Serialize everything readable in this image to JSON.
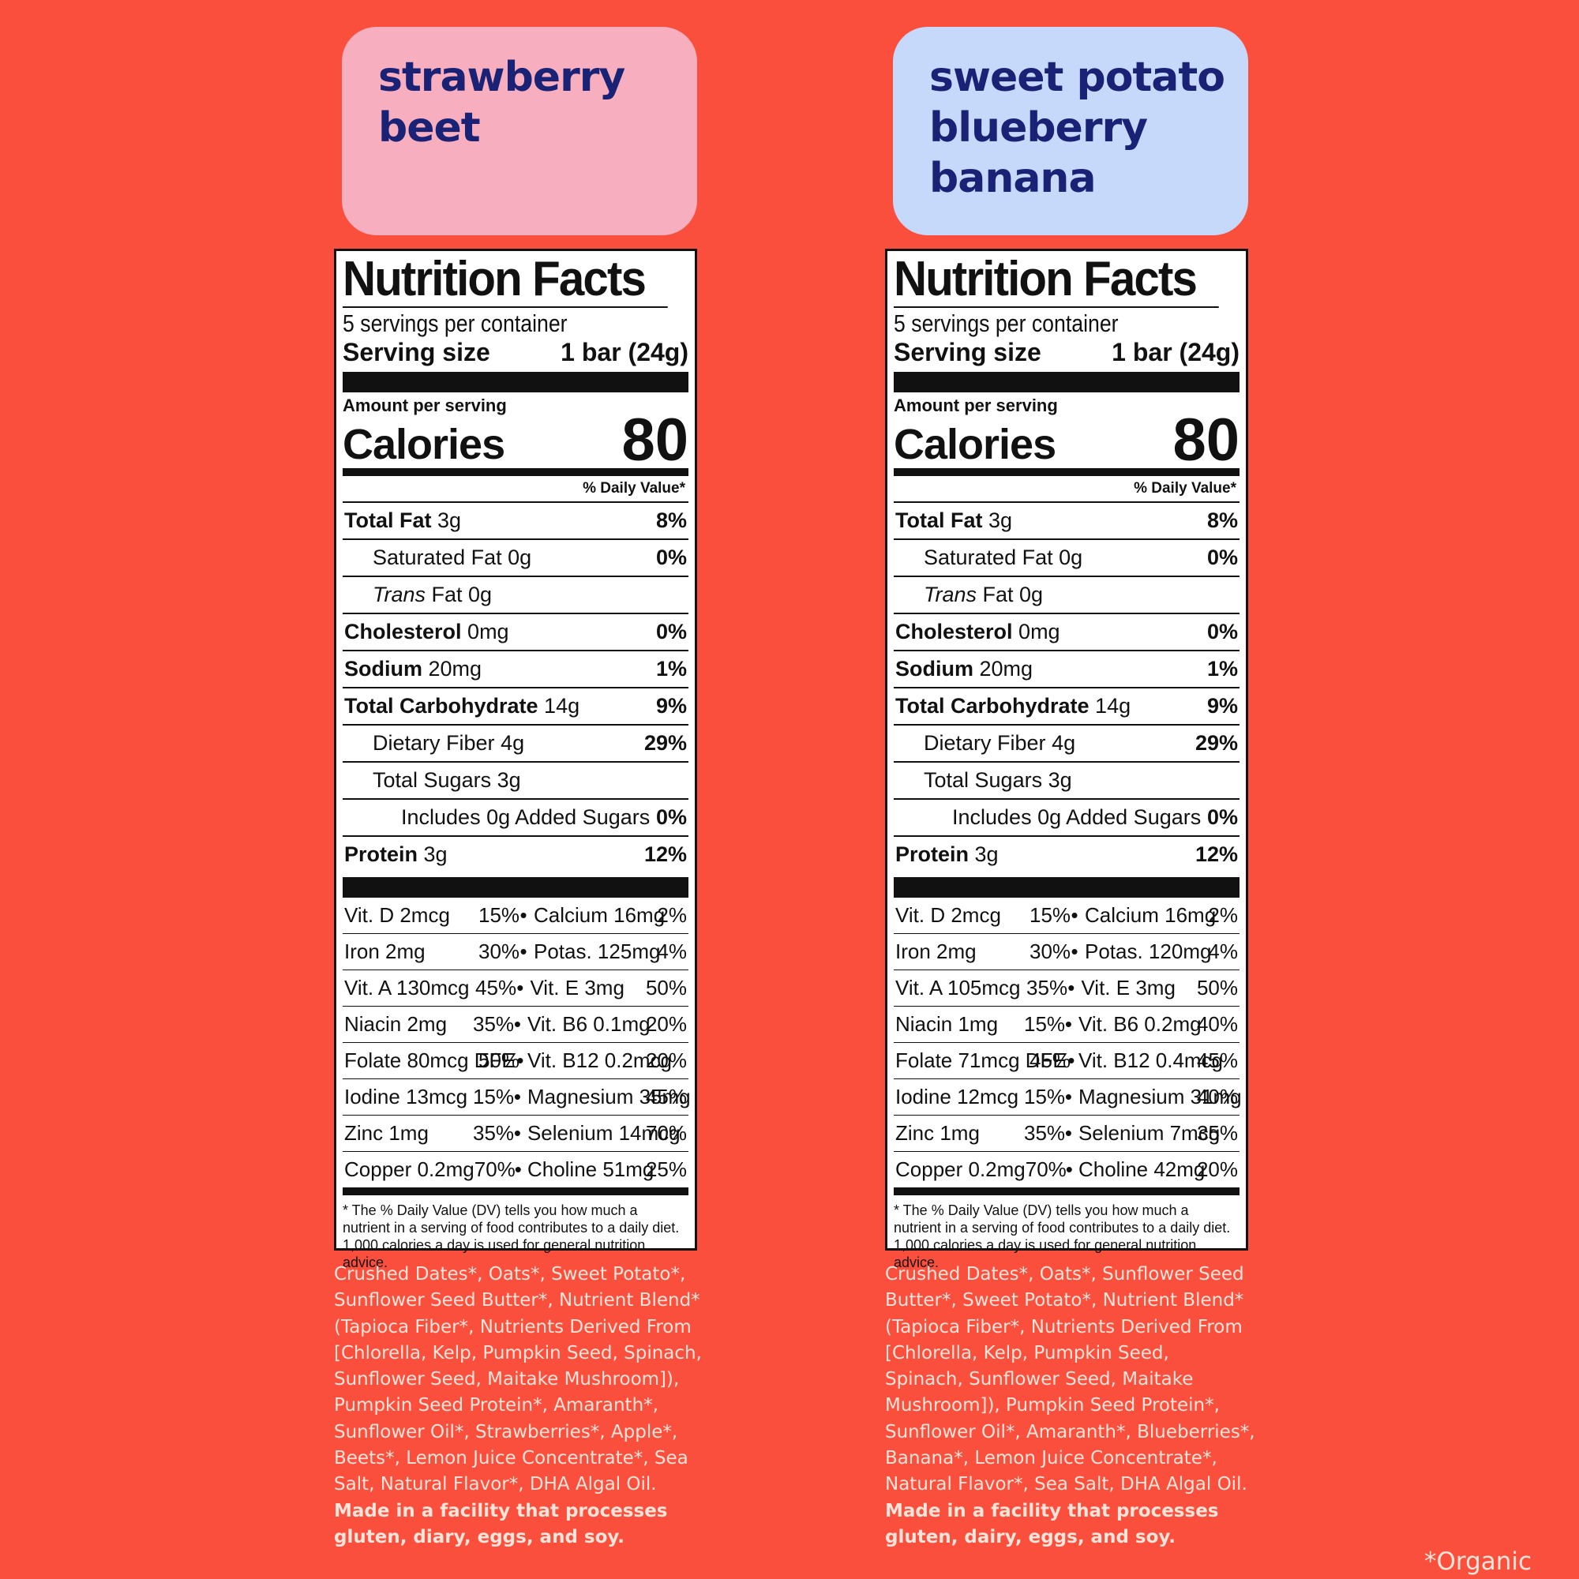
{
  "colors": {
    "background": "#fb4f3d",
    "left_card": "#f7afc0",
    "right_card": "#c7d9fb",
    "flavor_text": "#1a2275",
    "ingredient_text": "#ffe4da"
  },
  "products": [
    {
      "flavor_lines": [
        "strawberry",
        "beet"
      ],
      "nutrition": {
        "title": "Nutrition Facts",
        "servings": "5 servings per container",
        "serving_size_label": "Serving size",
        "serving_size_value": "1 bar (24g)",
        "amount_per_serving": "Amount per serving",
        "calories_label": "Calories",
        "calories_value": "80",
        "dv_header": "% Daily Value*",
        "nutrients": [
          {
            "name": "Total Fat",
            "amount": "3g",
            "pct": "8%"
          },
          {
            "name": "Saturated Fat",
            "amount": "0g",
            "pct": "0%"
          },
          {
            "name": "Trans",
            "amount": " Fat 0g",
            "pct": ""
          },
          {
            "name": "Cholesterol",
            "amount": "0mg",
            "pct": "0%"
          },
          {
            "name": "Sodium",
            "amount": "20mg",
            "pct": "1%"
          },
          {
            "name": "Total Carbohydrate",
            "amount": "14g",
            "pct": "9%"
          },
          {
            "name": "Dietary Fiber",
            "amount": "4g",
            "pct": "29%"
          },
          {
            "name": "Total Sugars",
            "amount": "3g",
            "pct": ""
          },
          {
            "name": "Includes 0g Added Sugars",
            "amount": "",
            "pct": "0%"
          },
          {
            "name": "Protein",
            "amount": "3g",
            "pct": "12%"
          }
        ],
        "vitamins": [
          [
            "Vit. D 2mcg",
            "15%",
            "Calcium 16mg",
            "2%"
          ],
          [
            "Iron 2mg",
            "30%",
            "Potas. 125mg",
            "4%"
          ],
          [
            "Vit. A 130mcg",
            "45%",
            "Vit. E 3mg",
            "50%"
          ],
          [
            "Niacin 2mg",
            "35%",
            "Vit. B6 0.1mg",
            "20%"
          ],
          [
            "Folate 80mcg DFE",
            "50%",
            "Vit. B12 0.2mcg",
            "20%"
          ],
          [
            "Iodine 13mcg",
            "15%",
            "Magnesium 35mg",
            "45%"
          ],
          [
            "Zinc 1mg",
            "35%",
            "Selenium 14mcg",
            "70%"
          ],
          [
            "Copper 0.2mg",
            "70%",
            "Choline 51mg",
            "25%"
          ]
        ],
        "footnote": "* The % Daily Value (DV) tells you how much a nutrient in a serving of food contributes to a daily diet. 1,000 calories a day is used for general nutrition advice."
      },
      "ingredients_lines": [
        "Crushed Dates*, Oats*, Sweet Potato*,",
        "Sunflower Seed Butter*, Nutrient Blend*",
        "(Tapioca Fiber*, Nutrients Derived From",
        "[Chlorella, Kelp, Pumpkin Seed, Spinach,",
        "Sunflower Seed, Maitake Mushroom]),",
        "Pumpkin Seed Protein*, Amaranth*,",
        "Sunflower Oil*, Strawberries*, Apple*,",
        "Beets*, Lemon Juice Concentrate*, Sea",
        "Salt, Natural Flavor*, DHA Algal Oil."
      ],
      "allergen_lines": [
        "Made in a facility that processes",
        "gluten, diary, eggs, and soy."
      ]
    },
    {
      "flavor_lines": [
        "sweet potato",
        "blueberry",
        "banana"
      ],
      "nutrition": {
        "title": "Nutrition Facts",
        "servings": "5 servings per container",
        "serving_size_label": "Serving size",
        "serving_size_value": "1 bar (24g)",
        "amount_per_serving": "Amount per serving",
        "calories_label": "Calories",
        "calories_value": "80",
        "dv_header": "% Daily Value*",
        "nutrients": [
          {
            "name": "Total Fat",
            "amount": "3g",
            "pct": "8%"
          },
          {
            "name": "Saturated Fat",
            "amount": "0g",
            "pct": "0%"
          },
          {
            "name": "Trans",
            "amount": " Fat 0g",
            "pct": ""
          },
          {
            "name": "Cholesterol",
            "amount": "0mg",
            "pct": "0%"
          },
          {
            "name": "Sodium",
            "amount": "20mg",
            "pct": "1%"
          },
          {
            "name": "Total Carbohydrate",
            "amount": "14g",
            "pct": "9%"
          },
          {
            "name": "Dietary Fiber",
            "amount": "4g",
            "pct": "29%"
          },
          {
            "name": "Total Sugars",
            "amount": "3g",
            "pct": ""
          },
          {
            "name": "Includes 0g Added Sugars",
            "amount": "",
            "pct": "0%"
          },
          {
            "name": "Protein",
            "amount": "3g",
            "pct": "12%"
          }
        ],
        "vitamins": [
          [
            "Vit. D 2mcg",
            "15%",
            "Calcium 16mg",
            "2%"
          ],
          [
            "Iron 2mg",
            "30%",
            "Potas. 120mg",
            "4%"
          ],
          [
            "Vit. A 105mcg",
            "35%",
            "Vit. E 3mg",
            "50%"
          ],
          [
            "Niacin 1mg",
            "15%",
            "Vit. B6 0.2mg",
            "40%"
          ],
          [
            "Folate 71mcg DFE",
            "45%",
            "Vit. B12 0.4mcg",
            "45%"
          ],
          [
            "Iodine 12mcg",
            "15%",
            "Magnesium 31mg",
            "40%"
          ],
          [
            "Zinc 1mg",
            "35%",
            "Selenium 7mcg",
            "35%"
          ],
          [
            "Copper 0.2mg",
            "70%",
            "Choline 42mg",
            "20%"
          ]
        ],
        "footnote": "* The % Daily Value (DV) tells you how much a nutrient in a serving of food contributes to a daily diet. 1,000 calories a day is used for general nutrition advice."
      },
      "ingredients_lines": [
        "Crushed Dates*, Oats*, Sunflower Seed",
        "Butter*, Sweet Potato*, Nutrient Blend*",
        "(Tapioca Fiber*, Nutrients Derived From",
        "[Chlorella, Kelp, Pumpkin Seed,",
        "Spinach, Sunflower Seed, Maitake",
        "Mushroom]), Pumpkin Seed Protein*,",
        "Sunflower Oil*, Amaranth*, Blueberries*,",
        "Banana*, Lemon Juice Concentrate*,",
        "Natural Flavor*, Sea Salt, DHA Algal Oil."
      ],
      "allergen_lines": [
        "Made in a facility that processes",
        "gluten, dairy, eggs, and soy."
      ]
    }
  ],
  "organic_note": "*Organic"
}
